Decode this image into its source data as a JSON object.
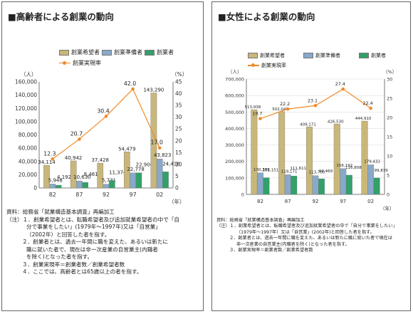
{
  "colors": {
    "aspirant": "#c9b77a",
    "preparer": "#88a9c9",
    "founder": "#33a06a",
    "rate": "#f08a2a"
  },
  "left": {
    "title": "■高齢者による創業の動向",
    "legend": {
      "aspirant": "創業希望者",
      "preparer": "創業準備者",
      "founder": "創業者",
      "rate": "創業実現率"
    },
    "axis_unit_left": "（人）",
    "axis_unit_right": "（%）",
    "x_unit": "（年）",
    "notes": {
      "source": "資料：総務省「就業構造基本調査」再編加工",
      "n1a": "（注）１．創業希望者とは、転職希望者及び追加就業希望者の中で「自",
      "n1b": "分で事業をしたい」(1979年〜1997年)又は「自営業」",
      "n1c": "（2002年）と回答した者を指す。",
      "n2a": "２．創業者とは、過去一年間に職を変えた、あるいは新たに",
      "n2b": "職に就いた者で、現在は非一次産業の自営業主(内職者",
      "n2c": "を除く)となった者を指す。",
      "n3": "３．創業実現率＝創業者数／創業希望者数",
      "n4": "４．ここでは、高齢者とは65歳以上の者を指す。"
    }
  },
  "right": {
    "title": "■女性による創業の動向",
    "legend": {
      "aspirant": "創業希望者",
      "preparer": "創業準備者",
      "founder": "創業者",
      "rate": "創業実現率"
    },
    "axis_unit_left": "（人）",
    "axis_unit_right": "（%）",
    "x_unit": "（年）",
    "notes": {
      "source": "資料：総務省「就業構造基本調査」再編加工",
      "n1a": "（注）１．創業希望者とは、転職希望者及び追加就業希望者の中で「自分で事業をしたい」",
      "n1b": "（1979年〜1997年）又は「自営業」(2002年)と回答した者を指す。",
      "n2a": "２．創業者とは、過去一年間に職を変えた、あるいは新たに職に就いた者で現在は",
      "n2b": "非一次産業の自営業主(内職者を除く)となった者を指す。",
      "n3": "３．創業実現率＝創業者数／創業希望者数"
    }
  },
  "chart_data": [
    {
      "type": "bar",
      "title": "■高齢者による創業の動向",
      "categories": [
        "82",
        "87",
        "92",
        "97",
        "02"
      ],
      "ylim": [
        0,
        160000
      ],
      "yticks": [
        "0",
        "20,000",
        "40,000",
        "60,000",
        "80,000",
        "100,000",
        "120,000",
        "140,000",
        "160,000"
      ],
      "y2lim": [
        0,
        45
      ],
      "y2ticks": [
        "0",
        "5",
        "10",
        "15",
        "20",
        "25",
        "30",
        "35",
        "40",
        "45"
      ],
      "series": [
        {
          "name": "創業希望者",
          "values": [
            34114,
            40942,
            37428,
            54479,
            143290
          ],
          "labels": [
            "34,114",
            "40,942",
            "37,428",
            "54,479",
            "143,290"
          ]
        },
        {
          "name": "創業準備者",
          "values": [
            5948,
            10630,
            5731,
            22778,
            43823
          ],
          "labels": [
            "5,948",
            "10,630",
            "5,731",
            "22,778",
            "43,823"
          ]
        },
        {
          "name": "創業者",
          "values": [
            4192,
            8461,
            11374,
            22904,
            24418
          ],
          "labels": [
            "4,192",
            "8,461",
            "11,374",
            "22,904",
            "24,418"
          ]
        },
        {
          "name": "創業実現率",
          "axis": "right",
          "type": "line",
          "values": [
            12.3,
            20.7,
            30.4,
            42.0,
            17.0
          ],
          "labels": [
            "12.3",
            "20.7",
            "30.4",
            "42.0",
            "17.0"
          ]
        }
      ],
      "grid": false,
      "legend": "top"
    },
    {
      "type": "bar",
      "title": "■女性による創業の動向",
      "categories": [
        "82",
        "87",
        "92",
        "97",
        "02"
      ],
      "ylim": [
        0,
        700000
      ],
      "yticks": [
        "0",
        "100,000",
        "200,000",
        "300,000",
        "400,000",
        "500,000",
        "600,000",
        "700,000"
      ],
      "y2lim": [
        0,
        30
      ],
      "y2ticks": [
        "0",
        "5",
        "10",
        "15",
        "20",
        "25",
        "30"
      ],
      "series": [
        {
          "name": "創業希望者",
          "values": [
            513938,
            502047,
            409171,
            426530,
            444910
          ],
          "labels": [
            "513,938",
            "502,047",
            "409,171",
            "426,530",
            "444,910"
          ]
        },
        {
          "name": "創業準備者",
          "values": [
            130389,
            119171,
            113700,
            156192,
            179432
          ],
          "labels": [
            "130,389",
            "119,171",
            "113,700",
            "156,192",
            "179,432"
          ]
        },
        {
          "name": "創業者",
          "values": [
            101151,
            111611,
            94469,
            116808,
            99839
          ],
          "labels": [
            "101,151",
            "111,611",
            "94,469",
            "116,808",
            "99,839"
          ]
        },
        {
          "name": "創業実現率",
          "axis": "right",
          "type": "line",
          "values": [
            19.7,
            22.2,
            23.1,
            27.4,
            22.4
          ],
          "labels": [
            "19.7",
            "22.2",
            "23.1",
            "27.4",
            "22.4"
          ]
        }
      ],
      "grid": true,
      "legend": "top"
    }
  ]
}
